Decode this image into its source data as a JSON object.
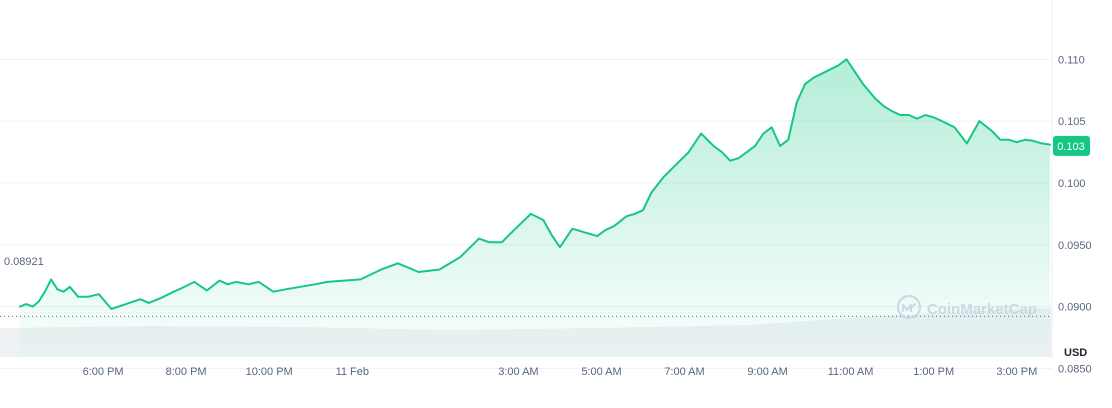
{
  "chart_data": {
    "type": "area",
    "title": "",
    "xlabel": "",
    "ylabel": "",
    "currency_label": "USD",
    "watermark": "CoinMarketCap",
    "ylim": [
      0.0822,
      0.1148
    ],
    "y_ticks": [
      "0.0850",
      "0.0900",
      "0.0950",
      "0.100",
      "0.105",
      "0.110"
    ],
    "y_tick_values": [
      0.085,
      0.09,
      0.095,
      0.1,
      0.105,
      0.11
    ],
    "x_tick_labels": [
      "6:00 PM",
      "8:00 PM",
      "10:00 PM",
      "11 Feb",
      "3:00 AM",
      "5:00 AM",
      "7:00 AM",
      "9:00 AM",
      "11:00 AM",
      "1:00 PM",
      "3:00 PM"
    ],
    "x_tick_hours": [
      17.1,
      19.1,
      21.1,
      23.1,
      27.1,
      29.1,
      31.1,
      33.1,
      35.1,
      37.1,
      39.1
    ],
    "x_range_hours": [
      15.1,
      39.9
    ],
    "reference_price": 0.08921,
    "reference_label": "0.08921",
    "current_price": 0.103,
    "current_label": "0.103",
    "grid": true,
    "colors": {
      "line": "#16c784",
      "badge": "#16c784",
      "grid": "#eff2f5",
      "axis_text": "#58667e",
      "volume": "#eff2f5",
      "watermark": "#cfd6e4"
    },
    "series": [
      {
        "name": "",
        "x_hours": [
          15.1,
          15.25,
          15.4,
          15.55,
          15.7,
          15.85,
          16.0,
          16.15,
          16.3,
          16.5,
          16.75,
          17.0,
          17.3,
          17.65,
          18.0,
          18.2,
          18.5,
          18.8,
          19.0,
          19.3,
          19.6,
          19.9,
          20.1,
          20.3,
          20.6,
          20.85,
          21.2,
          21.5,
          21.85,
          22.2,
          22.5,
          22.9,
          23.3,
          23.8,
          24.2,
          24.7,
          25.2,
          25.7,
          26.0,
          26.15,
          26.4,
          26.7,
          27.0,
          27.4,
          27.7,
          27.9,
          28.1,
          28.4,
          28.7,
          29.0,
          29.2,
          29.4,
          29.7,
          29.9,
          30.1,
          30.3,
          30.6,
          30.9,
          31.2,
          31.5,
          31.8,
          32.0,
          32.2,
          32.4,
          32.6,
          32.8,
          33.0,
          33.2,
          33.4,
          33.6,
          33.8,
          34.0,
          34.2,
          34.5,
          34.8,
          35.0,
          35.2,
          35.4,
          35.7,
          35.9,
          36.1,
          36.3,
          36.5,
          36.7,
          36.9,
          37.1,
          37.3,
          37.6,
          37.9,
          38.2,
          38.5,
          38.7,
          38.9,
          39.1,
          39.3,
          39.5,
          39.7,
          39.9
        ],
        "values": [
          0.09,
          0.0902,
          0.09,
          0.0904,
          0.0912,
          0.0922,
          0.0914,
          0.0912,
          0.0916,
          0.0908,
          0.0908,
          0.091,
          0.0898,
          0.0902,
          0.0906,
          0.0903,
          0.0907,
          0.0912,
          0.0915,
          0.092,
          0.0913,
          0.0921,
          0.0918,
          0.092,
          0.0918,
          0.092,
          0.0912,
          0.0914,
          0.0916,
          0.0918,
          0.092,
          0.0921,
          0.0922,
          0.093,
          0.0935,
          0.0928,
          0.093,
          0.094,
          0.095,
          0.0955,
          0.0952,
          0.0952,
          0.0962,
          0.0975,
          0.097,
          0.0958,
          0.0948,
          0.0963,
          0.096,
          0.0957,
          0.0962,
          0.0965,
          0.0973,
          0.0975,
          0.0978,
          0.0992,
          0.1005,
          0.1015,
          0.1025,
          0.104,
          0.103,
          0.1025,
          0.1018,
          0.102,
          0.1025,
          0.103,
          0.104,
          0.1045,
          0.103,
          0.1035,
          0.1065,
          0.108,
          0.1085,
          0.109,
          0.1095,
          0.11,
          0.109,
          0.108,
          0.1068,
          0.1062,
          0.1058,
          0.1055,
          0.1055,
          0.1052,
          0.1055,
          0.1053,
          0.105,
          0.1045,
          0.1032,
          0.105,
          0.1042,
          0.1035,
          0.1035,
          0.1033,
          0.1035,
          0.1034,
          0.1032,
          0.1031
        ]
      }
    ]
  }
}
